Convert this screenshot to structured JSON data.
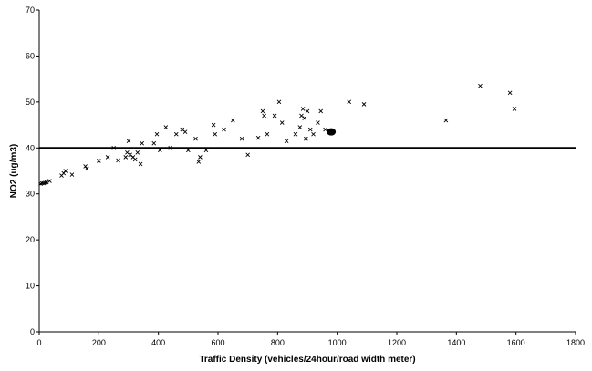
{
  "chart_data": {
    "type": "scatter",
    "title": "",
    "xlabel": "Traffic Density (vehicles/24hour/road width meter)",
    "ylabel": "NO2 (ug/m3)",
    "xlim": [
      0,
      1800
    ],
    "ylim": [
      0,
      70
    ],
    "x_ticks": [
      0,
      200,
      400,
      600,
      800,
      1000,
      1200,
      1400,
      1600,
      1800
    ],
    "y_ticks": [
      0,
      10,
      20,
      30,
      40,
      50,
      60,
      70
    ],
    "grid": false,
    "legend": "none",
    "reference_line": {
      "y": 40
    },
    "highlight_point": {
      "x": 980,
      "y": 43.5
    },
    "series": [
      {
        "marker": "x",
        "points": [
          [
            5,
            32.2
          ],
          [
            10,
            32.3
          ],
          [
            15,
            32.3
          ],
          [
            20,
            32.4
          ],
          [
            25,
            32.5
          ],
          [
            35,
            32.8
          ],
          [
            75,
            34
          ],
          [
            82,
            34.5
          ],
          [
            88,
            35
          ],
          [
            110,
            34.2
          ],
          [
            155,
            36
          ],
          [
            160,
            35.5
          ],
          [
            200,
            37.2
          ],
          [
            230,
            38
          ],
          [
            250,
            40
          ],
          [
            265,
            37.3
          ],
          [
            290,
            38
          ],
          [
            295,
            39
          ],
          [
            300,
            41.5
          ],
          [
            305,
            38.5
          ],
          [
            315,
            38
          ],
          [
            322,
            37.5
          ],
          [
            330,
            39
          ],
          [
            340,
            36.5
          ],
          [
            345,
            41
          ],
          [
            385,
            41
          ],
          [
            395,
            43
          ],
          [
            405,
            39.5
          ],
          [
            425,
            44.5
          ],
          [
            440,
            40
          ],
          [
            460,
            43
          ],
          [
            480,
            44
          ],
          [
            490,
            43.5
          ],
          [
            500,
            39.5
          ],
          [
            525,
            42
          ],
          [
            535,
            37
          ],
          [
            540,
            38
          ],
          [
            560,
            39.5
          ],
          [
            585,
            45
          ],
          [
            590,
            43
          ],
          [
            620,
            44
          ],
          [
            650,
            46
          ],
          [
            680,
            42
          ],
          [
            700,
            38.5
          ],
          [
            735,
            42.2
          ],
          [
            750,
            48
          ],
          [
            755,
            47
          ],
          [
            765,
            43
          ],
          [
            790,
            47
          ],
          [
            805,
            50
          ],
          [
            815,
            45.5
          ],
          [
            830,
            41.5
          ],
          [
            860,
            43
          ],
          [
            875,
            44.5
          ],
          [
            880,
            47
          ],
          [
            885,
            48.5
          ],
          [
            890,
            46.5
          ],
          [
            895,
            42
          ],
          [
            900,
            48
          ],
          [
            910,
            44
          ],
          [
            920,
            43
          ],
          [
            935,
            45.5
          ],
          [
            945,
            48
          ],
          [
            960,
            44
          ],
          [
            1040,
            50
          ],
          [
            1090,
            49.5
          ],
          [
            1365,
            46
          ],
          [
            1480,
            53.5
          ],
          [
            1580,
            52
          ],
          [
            1595,
            48.5
          ]
        ]
      }
    ]
  }
}
